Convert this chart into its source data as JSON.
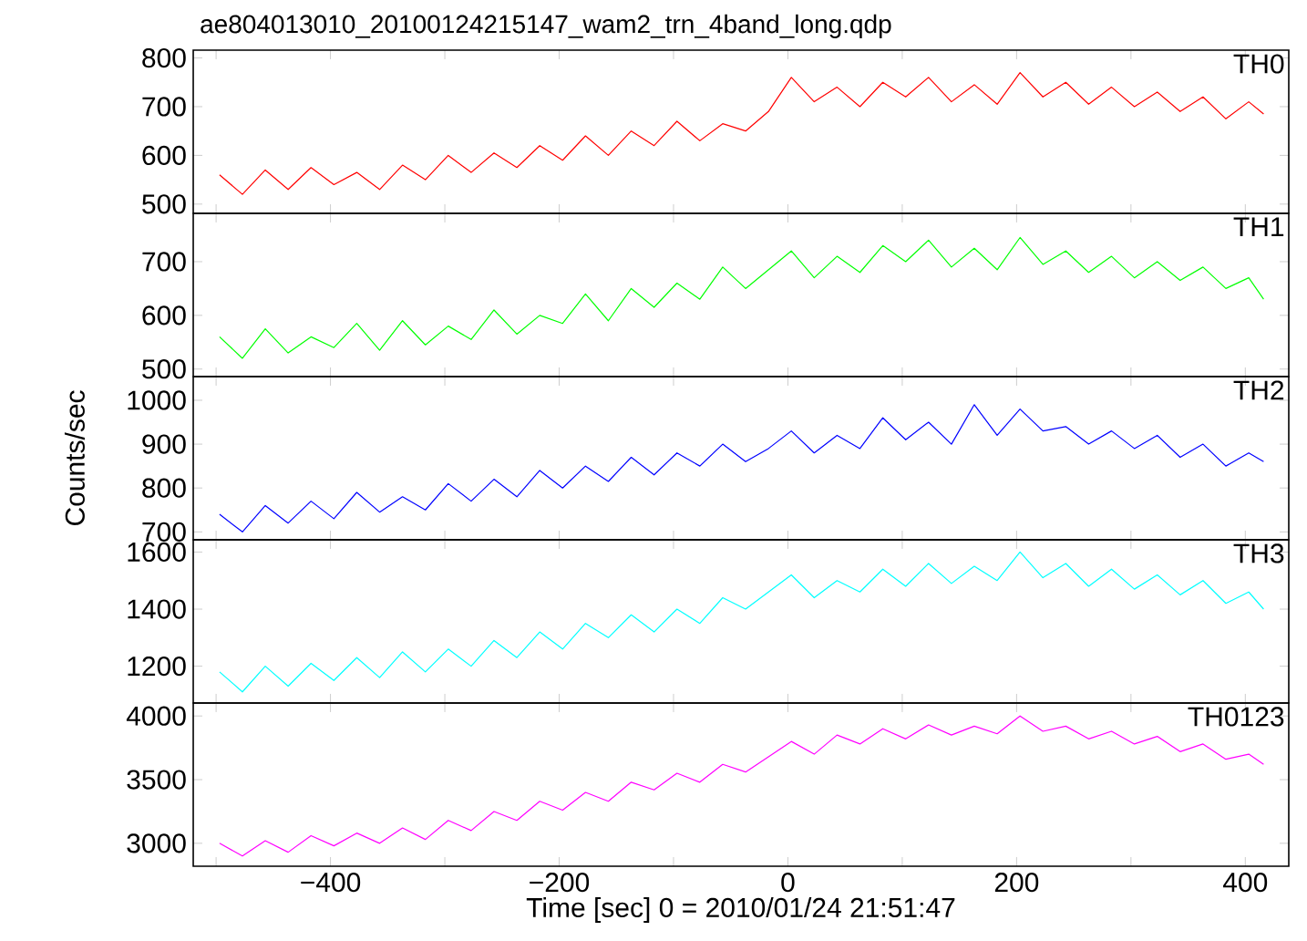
{
  "chart_data": [
    {
      "type": "line",
      "title": "ae804013010_20100124215147_wam2_trn_4band_long.qdp",
      "tick_labels": "y",
      "xlim": [
        -520,
        438
      ],
      "ylim": [
        481,
        816
      ],
      "yticks": [
        500,
        600,
        700,
        800
      ],
      "xticks": [
        -500,
        -400,
        -300,
        -200,
        -100,
        0,
        100,
        200,
        300,
        400
      ],
      "x": [
        -497,
        -477,
        -457,
        -437,
        -417,
        -397,
        -377,
        -357,
        -337,
        -317,
        -297,
        -277,
        -257,
        -237,
        -217,
        -197,
        -177,
        -157,
        -137,
        -117,
        -97,
        -77,
        -57,
        -37,
        -17,
        3,
        23,
        43,
        63,
        83,
        103,
        123,
        143,
        163,
        183,
        203,
        223,
        243,
        263,
        283,
        303,
        323,
        343,
        363,
        383,
        403,
        416
      ],
      "series": [
        {
          "name": "TH0",
          "color": "#ff0000",
          "values": [
            560,
            520,
            570,
            530,
            575,
            540,
            565,
            530,
            580,
            550,
            600,
            565,
            605,
            575,
            620,
            590,
            640,
            600,
            650,
            620,
            670,
            630,
            665,
            650,
            690,
            760,
            710,
            740,
            700,
            750,
            720,
            760,
            710,
            745,
            705,
            770,
            720,
            750,
            705,
            740,
            700,
            730,
            690,
            720,
            675,
            710,
            685
          ]
        }
      ]
    },
    {
      "type": "line",
      "tick_labels": "y",
      "xlim": [
        -520,
        438
      ],
      "ylim": [
        486,
        790
      ],
      "yticks": [
        500,
        600,
        700
      ],
      "xticks": [
        -500,
        -400,
        -300,
        -200,
        -100,
        0,
        100,
        200,
        300,
        400
      ],
      "x": [
        -497,
        -477,
        -457,
        -437,
        -417,
        -397,
        -377,
        -357,
        -337,
        -317,
        -297,
        -277,
        -257,
        -237,
        -217,
        -197,
        -177,
        -157,
        -137,
        -117,
        -97,
        -77,
        -57,
        -37,
        -17,
        3,
        23,
        43,
        63,
        83,
        103,
        123,
        143,
        163,
        183,
        203,
        223,
        243,
        263,
        283,
        303,
        323,
        343,
        363,
        383,
        403,
        416
      ],
      "series": [
        {
          "name": "TH1",
          "color": "#00ff00",
          "values": [
            560,
            520,
            575,
            530,
            560,
            540,
            585,
            535,
            590,
            545,
            580,
            555,
            610,
            565,
            600,
            585,
            640,
            590,
            650,
            615,
            660,
            630,
            690,
            650,
            685,
            720,
            670,
            710,
            680,
            730,
            700,
            740,
            690,
            725,
            685,
            745,
            695,
            720,
            680,
            710,
            670,
            700,
            665,
            690,
            650,
            670,
            630
          ]
        }
      ]
    },
    {
      "type": "line",
      "ylabel": "Counts/sec",
      "tick_labels": "y",
      "xlim": [
        -520,
        438
      ],
      "ylim": [
        682,
        1054
      ],
      "yticks": [
        700,
        800,
        900,
        1000
      ],
      "xticks": [
        -500,
        -400,
        -300,
        -200,
        -100,
        0,
        100,
        200,
        300,
        400
      ],
      "x": [
        -497,
        -477,
        -457,
        -437,
        -417,
        -397,
        -377,
        -357,
        -337,
        -317,
        -297,
        -277,
        -257,
        -237,
        -217,
        -197,
        -177,
        -157,
        -137,
        -117,
        -97,
        -77,
        -57,
        -37,
        -17,
        3,
        23,
        43,
        63,
        83,
        103,
        123,
        143,
        163,
        183,
        203,
        223,
        243,
        263,
        283,
        303,
        323,
        343,
        363,
        383,
        403,
        416
      ],
      "series": [
        {
          "name": "TH2",
          "color": "#0000ff",
          "values": [
            740,
            700,
            760,
            720,
            770,
            730,
            790,
            745,
            780,
            750,
            810,
            770,
            820,
            780,
            840,
            800,
            850,
            815,
            870,
            830,
            880,
            850,
            900,
            860,
            890,
            930,
            880,
            920,
            890,
            960,
            910,
            950,
            900,
            990,
            920,
            980,
            930,
            940,
            900,
            930,
            890,
            920,
            870,
            900,
            850,
            880,
            860
          ]
        }
      ]
    },
    {
      "type": "line",
      "tick_labels": "y",
      "xlim": [
        -520,
        438
      ],
      "ylim": [
        1071,
        1643
      ],
      "yticks": [
        1200,
        1400,
        1600
      ],
      "xticks": [
        -500,
        -400,
        -300,
        -200,
        -100,
        0,
        100,
        200,
        300,
        400
      ],
      "x": [
        -497,
        -477,
        -457,
        -437,
        -417,
        -397,
        -377,
        -357,
        -337,
        -317,
        -297,
        -277,
        -257,
        -237,
        -217,
        -197,
        -177,
        -157,
        -137,
        -117,
        -97,
        -77,
        -57,
        -37,
        -17,
        3,
        23,
        43,
        63,
        83,
        103,
        123,
        143,
        163,
        183,
        203,
        223,
        243,
        263,
        283,
        303,
        323,
        343,
        363,
        383,
        403,
        416
      ],
      "series": [
        {
          "name": "TH3",
          "color": "#00ffff",
          "values": [
            1180,
            1110,
            1200,
            1130,
            1210,
            1150,
            1230,
            1160,
            1250,
            1180,
            1260,
            1200,
            1290,
            1230,
            1320,
            1260,
            1350,
            1300,
            1380,
            1320,
            1400,
            1350,
            1440,
            1400,
            1460,
            1520,
            1440,
            1500,
            1460,
            1540,
            1480,
            1560,
            1490,
            1550,
            1500,
            1600,
            1510,
            1560,
            1480,
            1540,
            1470,
            1520,
            1450,
            1500,
            1420,
            1460,
            1400
          ]
        }
      ]
    },
    {
      "type": "line",
      "xlabel": "Time [sec] 0 = 2010/01/24 21:51:47",
      "xlim": [
        -520,
        438
      ],
      "ylim": [
        2820,
        4102
      ],
      "yticks": [
        3000,
        3500,
        4000
      ],
      "xticks": [
        {
          "value": -500,
          "label": null
        },
        {
          "value": -400,
          "label": "−400"
        },
        {
          "value": -300,
          "label": null
        },
        {
          "value": -200,
          "label": "−200"
        },
        {
          "value": -100,
          "label": null
        },
        {
          "value": 0,
          "label": "0"
        },
        {
          "value": 100,
          "label": null
        },
        {
          "value": 200,
          "label": "200"
        },
        {
          "value": 300,
          "label": null
        },
        {
          "value": 400,
          "label": "400"
        }
      ],
      "x": [
        -497,
        -477,
        -457,
        -437,
        -417,
        -397,
        -377,
        -357,
        -337,
        -317,
        -297,
        -277,
        -257,
        -237,
        -217,
        -197,
        -177,
        -157,
        -137,
        -117,
        -97,
        -77,
        -57,
        -37,
        -17,
        3,
        23,
        43,
        63,
        83,
        103,
        123,
        143,
        163,
        183,
        203,
        223,
        243,
        263,
        283,
        303,
        323,
        343,
        363,
        383,
        403,
        416
      ],
      "series": [
        {
          "name": "TH0123",
          "color": "#ff00ff",
          "values": [
            3000,
            2900,
            3020,
            2930,
            3060,
            2980,
            3080,
            3000,
            3120,
            3030,
            3180,
            3100,
            3250,
            3180,
            3330,
            3260,
            3400,
            3330,
            3480,
            3420,
            3550,
            3480,
            3620,
            3560,
            3680,
            3800,
            3700,
            3850,
            3780,
            3900,
            3820,
            3930,
            3850,
            3920,
            3860,
            4000,
            3880,
            3920,
            3820,
            3880,
            3780,
            3840,
            3720,
            3780,
            3660,
            3700,
            3620
          ]
        }
      ]
    }
  ]
}
